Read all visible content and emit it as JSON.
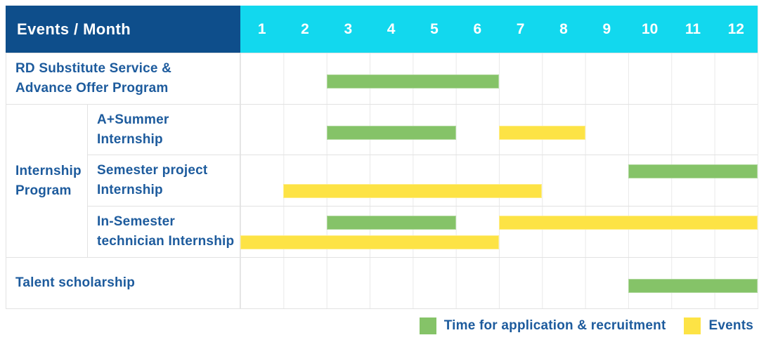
{
  "header": {
    "title": "Events / Month",
    "months": [
      "1",
      "2",
      "3",
      "4",
      "5",
      "6",
      "7",
      "8",
      "9",
      "10",
      "11",
      "12"
    ]
  },
  "colors": {
    "header_bg": "#0E4E8B",
    "months_bg": "#12D8EE",
    "recruitment": "#85C368",
    "event": "#FDE345",
    "label_text": "#1D5B9D",
    "grid": "#E2E2E2"
  },
  "chart_data": {
    "type": "gantt",
    "x_axis": "Month",
    "x_range": [
      1,
      12
    ],
    "rows": [
      {
        "label": "RD Substitute Service &\nAdvance Offer Program",
        "group": null,
        "bars": [
          {
            "type": "recruitment",
            "start_month": 3,
            "end_month": 6,
            "line": "single"
          }
        ]
      },
      {
        "label": "A+Summer\nInternship",
        "group": "Internship\nProgram",
        "bars": [
          {
            "type": "recruitment",
            "start_month": 3,
            "end_month": 5,
            "line": "single"
          },
          {
            "type": "event",
            "start_month": 7,
            "end_month": 8,
            "line": "single"
          }
        ]
      },
      {
        "label": "Semester project\nInternship",
        "group": "Internship\nProgram",
        "bars": [
          {
            "type": "recruitment",
            "start_month": 10,
            "end_month": 12,
            "line": "top"
          },
          {
            "type": "event",
            "start_month": 2,
            "end_month": 7,
            "line": "bottom"
          }
        ]
      },
      {
        "label": "In-Semester\ntechnician Internship",
        "group": "Internship\nProgram",
        "bars": [
          {
            "type": "recruitment",
            "start_month": 3,
            "end_month": 5,
            "line": "top"
          },
          {
            "type": "event",
            "start_month": 7,
            "end_month": 12,
            "line": "top"
          },
          {
            "type": "event",
            "start_month": 1,
            "end_month": 6,
            "line": "bottom"
          }
        ]
      },
      {
        "label": "Talent scholarship",
        "group": null,
        "bars": [
          {
            "type": "recruitment",
            "start_month": 10,
            "end_month": 12,
            "line": "single"
          }
        ]
      }
    ]
  },
  "legend": {
    "items": [
      {
        "type": "recruitment",
        "label": "Time for application & recruitment"
      },
      {
        "type": "event",
        "label": "Events"
      }
    ]
  }
}
